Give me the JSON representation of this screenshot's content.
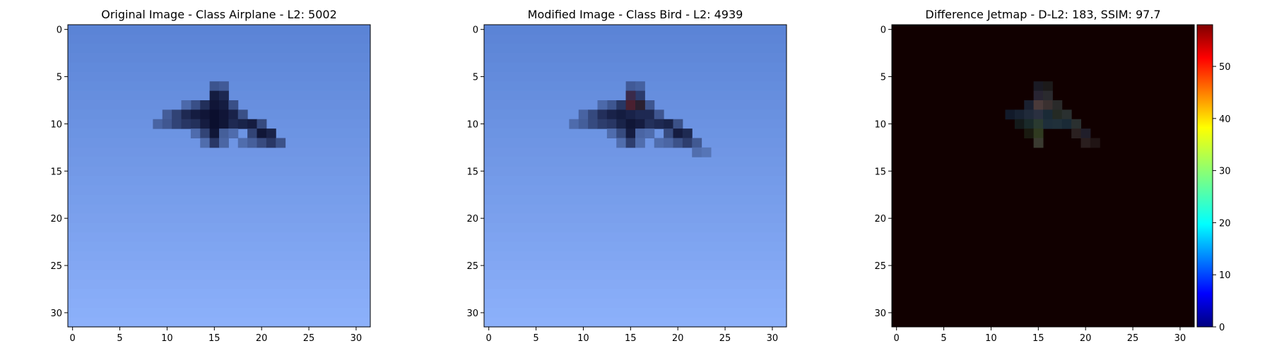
{
  "chart_data": [
    {
      "type": "heatmap",
      "title": "Original Image - Class Airplane - L2: 5002",
      "title_color": "#000000",
      "grid_size": [
        32,
        32
      ],
      "xlim": [
        -0.5,
        31.5
      ],
      "ylim": [
        31.5,
        -0.5
      ],
      "x_ticks": [
        0,
        5,
        10,
        15,
        20,
        25,
        30
      ],
      "y_ticks": [
        0,
        5,
        10,
        15,
        20,
        25,
        30
      ],
      "background_colors": {
        "top": "#5b84d6",
        "bottom": "#8cb0fa"
      },
      "object_color": "#0b0f2e",
      "object_cells": [
        {
          "x": 15,
          "y": 6,
          "v": 0.45
        },
        {
          "x": 16,
          "y": 6,
          "v": 0.4
        },
        {
          "x": 15,
          "y": 7,
          "v": 0.9
        },
        {
          "x": 16,
          "y": 7,
          "v": 0.8
        },
        {
          "x": 13,
          "y": 8,
          "v": 0.5
        },
        {
          "x": 14,
          "y": 8,
          "v": 0.75
        },
        {
          "x": 15,
          "y": 8,
          "v": 0.95
        },
        {
          "x": 16,
          "y": 8,
          "v": 0.9
        },
        {
          "x": 17,
          "y": 8,
          "v": 0.5
        },
        {
          "x": 12,
          "y": 8,
          "v": 0.3
        },
        {
          "x": 10,
          "y": 9,
          "v": 0.4
        },
        {
          "x": 11,
          "y": 9,
          "v": 0.6
        },
        {
          "x": 12,
          "y": 9,
          "v": 0.8
        },
        {
          "x": 13,
          "y": 9,
          "v": 0.9
        },
        {
          "x": 14,
          "y": 9,
          "v": 0.95
        },
        {
          "x": 15,
          "y": 9,
          "v": 1.0
        },
        {
          "x": 16,
          "y": 9,
          "v": 0.95
        },
        {
          "x": 17,
          "y": 9,
          "v": 0.85
        },
        {
          "x": 18,
          "y": 9,
          "v": 0.5
        },
        {
          "x": 9,
          "y": 10,
          "v": 0.35
        },
        {
          "x": 10,
          "y": 10,
          "v": 0.45
        },
        {
          "x": 11,
          "y": 10,
          "v": 0.6
        },
        {
          "x": 12,
          "y": 10,
          "v": 0.7
        },
        {
          "x": 13,
          "y": 10,
          "v": 0.75
        },
        {
          "x": 14,
          "y": 10,
          "v": 0.9
        },
        {
          "x": 15,
          "y": 10,
          "v": 1.0
        },
        {
          "x": 16,
          "y": 10,
          "v": 0.95
        },
        {
          "x": 17,
          "y": 10,
          "v": 0.8
        },
        {
          "x": 18,
          "y": 10,
          "v": 0.85
        },
        {
          "x": 19,
          "y": 10,
          "v": 0.9
        },
        {
          "x": 20,
          "y": 10,
          "v": 0.55
        },
        {
          "x": 13,
          "y": 11,
          "v": 0.3
        },
        {
          "x": 14,
          "y": 11,
          "v": 0.6
        },
        {
          "x": 15,
          "y": 11,
          "v": 0.95
        },
        {
          "x": 16,
          "y": 11,
          "v": 0.4
        },
        {
          "x": 17,
          "y": 11,
          "v": 0.3
        },
        {
          "x": 19,
          "y": 11,
          "v": 0.6
        },
        {
          "x": 20,
          "y": 11,
          "v": 0.95
        },
        {
          "x": 21,
          "y": 11,
          "v": 0.85
        },
        {
          "x": 14,
          "y": 12,
          "v": 0.3
        },
        {
          "x": 15,
          "y": 12,
          "v": 0.7
        },
        {
          "x": 16,
          "y": 12,
          "v": 0.35
        },
        {
          "x": 18,
          "y": 12,
          "v": 0.3
        },
        {
          "x": 19,
          "y": 12,
          "v": 0.4
        },
        {
          "x": 20,
          "y": 12,
          "v": 0.55
        },
        {
          "x": 21,
          "y": 12,
          "v": 0.7
        },
        {
          "x": 22,
          "y": 12,
          "v": 0.5
        }
      ]
    },
    {
      "type": "heatmap",
      "title": "Modified Image - Class Bird - L2: 4939",
      "title_color": "#ff0000",
      "grid_size": [
        32,
        32
      ],
      "xlim": [
        -0.5,
        31.5
      ],
      "ylim": [
        31.5,
        -0.5
      ],
      "x_ticks": [
        0,
        5,
        10,
        15,
        20,
        25,
        30
      ],
      "y_ticks": [
        0,
        5,
        10,
        15,
        20,
        25,
        30
      ],
      "background_colors": {
        "top": "#5b84d6",
        "bottom": "#8cb0fa"
      },
      "object_color": "#0b0f2e",
      "tint_cells": [
        {
          "x": 15,
          "y": 7,
          "color": "#3a2a4a"
        },
        {
          "x": 15,
          "y": 8,
          "color": "#4a2030"
        },
        {
          "x": 16,
          "y": 8,
          "color": "#2a2030"
        }
      ],
      "object_cells": [
        {
          "x": 15,
          "y": 6,
          "v": 0.4
        },
        {
          "x": 16,
          "y": 6,
          "v": 0.35
        },
        {
          "x": 15,
          "y": 7,
          "v": 0.7
        },
        {
          "x": 16,
          "y": 7,
          "v": 0.65
        },
        {
          "x": 13,
          "y": 8,
          "v": 0.45
        },
        {
          "x": 14,
          "y": 8,
          "v": 0.7
        },
        {
          "x": 15,
          "y": 8,
          "v": 0.8
        },
        {
          "x": 16,
          "y": 8,
          "v": 0.75
        },
        {
          "x": 17,
          "y": 8,
          "v": 0.45
        },
        {
          "x": 12,
          "y": 8,
          "v": 0.3
        },
        {
          "x": 10,
          "y": 9,
          "v": 0.35
        },
        {
          "x": 11,
          "y": 9,
          "v": 0.55
        },
        {
          "x": 12,
          "y": 9,
          "v": 0.75
        },
        {
          "x": 13,
          "y": 9,
          "v": 0.85
        },
        {
          "x": 14,
          "y": 9,
          "v": 0.9
        },
        {
          "x": 15,
          "y": 9,
          "v": 0.85
        },
        {
          "x": 16,
          "y": 9,
          "v": 0.8
        },
        {
          "x": 17,
          "y": 9,
          "v": 0.8
        },
        {
          "x": 18,
          "y": 9,
          "v": 0.45
        },
        {
          "x": 9,
          "y": 10,
          "v": 0.3
        },
        {
          "x": 10,
          "y": 10,
          "v": 0.4
        },
        {
          "x": 11,
          "y": 10,
          "v": 0.55
        },
        {
          "x": 12,
          "y": 10,
          "v": 0.65
        },
        {
          "x": 13,
          "y": 10,
          "v": 0.7
        },
        {
          "x": 14,
          "y": 10,
          "v": 0.85
        },
        {
          "x": 15,
          "y": 10,
          "v": 0.95
        },
        {
          "x": 16,
          "y": 10,
          "v": 0.9
        },
        {
          "x": 17,
          "y": 10,
          "v": 0.75
        },
        {
          "x": 18,
          "y": 10,
          "v": 0.8
        },
        {
          "x": 19,
          "y": 10,
          "v": 0.85
        },
        {
          "x": 20,
          "y": 10,
          "v": 0.5
        },
        {
          "x": 13,
          "y": 11,
          "v": 0.3
        },
        {
          "x": 14,
          "y": 11,
          "v": 0.55
        },
        {
          "x": 15,
          "y": 11,
          "v": 0.9
        },
        {
          "x": 16,
          "y": 11,
          "v": 0.35
        },
        {
          "x": 17,
          "y": 11,
          "v": 0.3
        },
        {
          "x": 19,
          "y": 11,
          "v": 0.55
        },
        {
          "x": 20,
          "y": 11,
          "v": 0.9
        },
        {
          "x": 21,
          "y": 11,
          "v": 0.8
        },
        {
          "x": 14,
          "y": 12,
          "v": 0.3
        },
        {
          "x": 15,
          "y": 12,
          "v": 0.65
        },
        {
          "x": 16,
          "y": 12,
          "v": 0.3
        },
        {
          "x": 18,
          "y": 12,
          "v": 0.3
        },
        {
          "x": 19,
          "y": 12,
          "v": 0.35
        },
        {
          "x": 20,
          "y": 12,
          "v": 0.5
        },
        {
          "x": 21,
          "y": 12,
          "v": 0.65
        },
        {
          "x": 22,
          "y": 12,
          "v": 0.45
        },
        {
          "x": 22,
          "y": 13,
          "v": 0.3
        },
        {
          "x": 23,
          "y": 13,
          "v": 0.25
        }
      ]
    },
    {
      "type": "heatmap",
      "title": "Difference Jetmap - D-L2: 183, SSIM: 97.7",
      "title_color": "#000000",
      "grid_size": [
        32,
        32
      ],
      "xlim": [
        -0.5,
        31.5
      ],
      "ylim": [
        31.5,
        -0.5
      ],
      "x_ticks": [
        0,
        5,
        10,
        15,
        20,
        25,
        30
      ],
      "y_ticks": [
        0,
        5,
        10,
        15,
        20,
        25,
        30
      ],
      "background_color": "#110000",
      "colorbar": {
        "min": 0,
        "max": 58,
        "ticks": [
          0,
          10,
          20,
          30,
          40,
          50
        ],
        "colormap": "jet"
      },
      "diff_cells": [
        {
          "x": 15,
          "y": 6,
          "color": "#1a1a24"
        },
        {
          "x": 16,
          "y": 6,
          "color": "#1c1a1a"
        },
        {
          "x": 15,
          "y": 7,
          "color": "#282432"
        },
        {
          "x": 16,
          "y": 7,
          "color": "#2a2a2e"
        },
        {
          "x": 14,
          "y": 8,
          "color": "#1a2030"
        },
        {
          "x": 15,
          "y": 8,
          "color": "#4a3a3a"
        },
        {
          "x": 16,
          "y": 8,
          "color": "#3a3030"
        },
        {
          "x": 17,
          "y": 8,
          "color": "#2a2a2a"
        },
        {
          "x": 12,
          "y": 9,
          "color": "#121a2a"
        },
        {
          "x": 13,
          "y": 9,
          "color": "#182232"
        },
        {
          "x": 14,
          "y": 9,
          "color": "#202a3a"
        },
        {
          "x": 15,
          "y": 9,
          "color": "#2a3040"
        },
        {
          "x": 16,
          "y": 9,
          "color": "#1a2a36"
        },
        {
          "x": 17,
          "y": 9,
          "color": "#242a24"
        },
        {
          "x": 18,
          "y": 9,
          "color": "#2a3030"
        },
        {
          "x": 13,
          "y": 10,
          "color": "#141a1a"
        },
        {
          "x": 14,
          "y": 10,
          "color": "#1a2a2a"
        },
        {
          "x": 15,
          "y": 10,
          "color": "#2a3a30"
        },
        {
          "x": 16,
          "y": 10,
          "color": "#1e2e3a"
        },
        {
          "x": 17,
          "y": 10,
          "color": "#20303a"
        },
        {
          "x": 18,
          "y": 10,
          "color": "#1a2a36"
        },
        {
          "x": 19,
          "y": 10,
          "color": "#2a3030"
        },
        {
          "x": 14,
          "y": 11,
          "color": "#1a1a10"
        },
        {
          "x": 15,
          "y": 11,
          "color": "#303a20"
        },
        {
          "x": 19,
          "y": 11,
          "color": "#2a2020"
        },
        {
          "x": 20,
          "y": 11,
          "color": "#201e2a"
        },
        {
          "x": 15,
          "y": 12,
          "color": "#3a3a30"
        },
        {
          "x": 20,
          "y": 12,
          "color": "#2a1e1e"
        },
        {
          "x": 21,
          "y": 12,
          "color": "#201414"
        }
      ]
    }
  ]
}
